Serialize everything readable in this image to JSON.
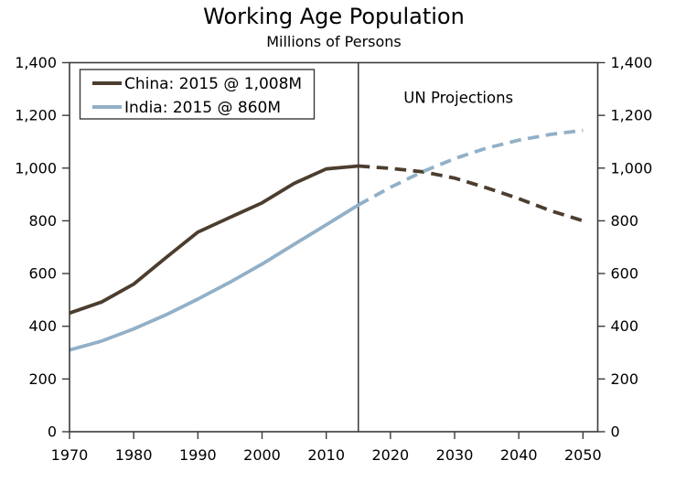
{
  "chart_data": {
    "type": "line",
    "title": "Working Age Population",
    "subtitle": "Millions of Persons",
    "annotation": "UN Projections",
    "xlabel": "",
    "ylabel": "",
    "xlim": [
      1970,
      2052.3
    ],
    "ylim": [
      0,
      1400
    ],
    "grid": false,
    "legend_position": "upper-left",
    "divider_year": 2015,
    "axis_color": "#3a3a3a",
    "text_color": "#000000",
    "x_ticks": [
      1970,
      1980,
      1990,
      2000,
      2010,
      2020,
      2030,
      2040,
      2050
    ],
    "x_tick_labels": [
      "1970",
      "1980",
      "1990",
      "2000",
      "2010",
      "2020",
      "2030",
      "2040",
      "2050"
    ],
    "y_ticks": [
      0,
      200,
      400,
      600,
      800,
      1000,
      1200,
      1400
    ],
    "y_tick_labels": [
      "0",
      "200",
      "400",
      "600",
      "800",
      "1,000",
      "1,200",
      "1,400"
    ],
    "y_axis_mirrored_right": true,
    "x": [
      1970,
      1975,
      1980,
      1985,
      1990,
      1995,
      2000,
      2005,
      2010,
      2015,
      2020,
      2025,
      2030,
      2035,
      2040,
      2045,
      2050
    ],
    "series": [
      {
        "name": "China: 2015 @ 1,008M",
        "color": "#4c3d2e",
        "style_before_divider": "solid",
        "style_after_divider": "dashed",
        "values": [
          450,
          492,
          560,
          660,
          757,
          813,
          868,
          942,
          997,
          1008,
          999,
          986,
          962,
          925,
          884,
          838,
          800
        ]
      },
      {
        "name": "India: 2015 @ 860M",
        "color": "#92b0c7",
        "style_before_divider": "solid",
        "style_after_divider": "dashed",
        "values": [
          310,
          344,
          390,
          443,
          503,
          567,
          636,
          711,
          785,
          860,
          927,
          986,
          1036,
          1076,
          1106,
          1128,
          1143
        ]
      }
    ]
  }
}
